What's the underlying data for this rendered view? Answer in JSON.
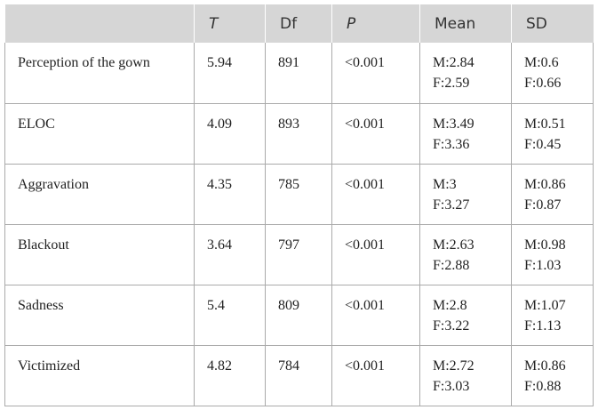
{
  "table": {
    "headers": [
      "",
      "T",
      "Df",
      "P",
      "Mean",
      "SD"
    ],
    "rows": [
      {
        "label": "Perception of the gown",
        "t": "5.94",
        "df": "891",
        "p": "<0.001",
        "mean_m": "M:2.84",
        "mean_f": "F:2.59",
        "sd_m": "M:0.6",
        "sd_f": "F:0.66"
      },
      {
        "label": "ELOC",
        "t": "4.09",
        "df": "893",
        "p": "<0.001",
        "mean_m": "M:3.49",
        "mean_f": "F:3.36",
        "sd_m": "M:0.51",
        "sd_f": "F:0.45"
      },
      {
        "label": "Aggravation",
        "t": "4.35",
        "df": "785",
        "p": "<0.001",
        "mean_m": "M:3",
        "mean_f": "F:3.27",
        "sd_m": "M:0.86",
        "sd_f": "F:0.87"
      },
      {
        "label": "Blackout",
        "t": "3.64",
        "df": "797",
        "p": "<0.001",
        "mean_m": "M:2.63",
        "mean_f": "F:2.88",
        "sd_m": "M:0.98",
        "sd_f": "F:1.03"
      },
      {
        "label": "Sadness",
        "t": "5.4",
        "df": "809",
        "p": "<0.001",
        "mean_m": "M:2.8",
        "mean_f": "F:3.22",
        "sd_m": "M:1.07",
        "sd_f": "F:1.13"
      },
      {
        "label": "Victimized",
        "t": "4.82",
        "df": "784",
        "p": "<0.001",
        "mean_m": "M:2.72",
        "mean_f": "F:3.03",
        "sd_m": "M:0.86",
        "sd_f": "F:0.88"
      }
    ]
  }
}
